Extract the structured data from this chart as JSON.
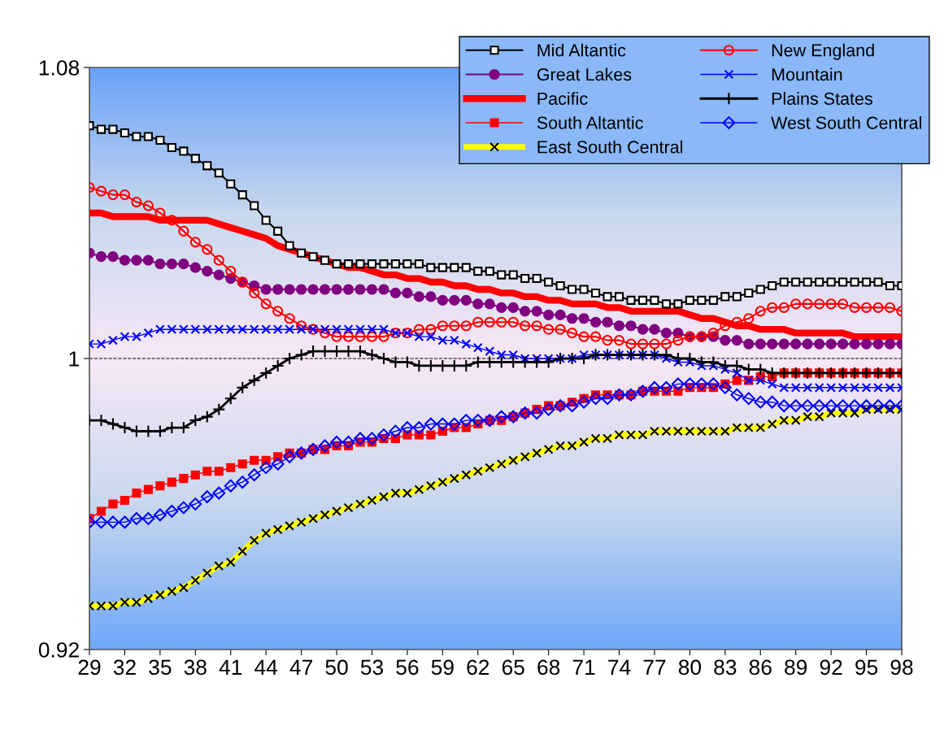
{
  "chart_data": {
    "type": "line",
    "x": [
      29,
      30,
      31,
      32,
      33,
      34,
      35,
      36,
      37,
      38,
      39,
      40,
      41,
      42,
      43,
      44,
      45,
      46,
      47,
      48,
      49,
      50,
      51,
      52,
      53,
      54,
      55,
      56,
      57,
      58,
      59,
      60,
      61,
      62,
      63,
      64,
      65,
      66,
      67,
      68,
      69,
      70,
      71,
      72,
      73,
      74,
      75,
      76,
      77,
      78,
      79,
      80,
      81,
      82,
      83,
      84,
      85,
      86,
      87,
      88,
      89,
      90,
      91,
      92,
      93,
      94,
      95,
      96,
      97,
      98
    ],
    "xlim": [
      29,
      98
    ],
    "xticks": [
      29,
      32,
      35,
      38,
      41,
      44,
      47,
      50,
      53,
      56,
      59,
      62,
      65,
      68,
      71,
      74,
      77,
      80,
      83,
      86,
      89,
      92,
      95,
      98
    ],
    "ylim": [
      0.92,
      1.08
    ],
    "yticks": [
      0.92,
      1,
      1.08
    ],
    "ref_lines": [
      {
        "axis": "y",
        "value": 1,
        "color": "#000000",
        "line_style": "dashed"
      }
    ],
    "legend": "top right",
    "grid": false,
    "series": [
      {
        "name": "Mid Altantic",
        "color": "#000000",
        "marker": "square",
        "values": [
          1.064,
          1.063,
          1.063,
          1.062,
          1.061,
          1.061,
          1.06,
          1.058,
          1.057,
          1.055,
          1.053,
          1.051,
          1.048,
          1.045,
          1.042,
          1.038,
          1.035,
          1.031,
          1.029,
          1.028,
          1.027,
          1.026,
          1.026,
          1.026,
          1.026,
          1.026,
          1.026,
          1.026,
          1.026,
          1.025,
          1.025,
          1.025,
          1.025,
          1.024,
          1.024,
          1.023,
          1.023,
          1.022,
          1.022,
          1.021,
          1.02,
          1.019,
          1.019,
          1.018,
          1.017,
          1.017,
          1.016,
          1.016,
          1.016,
          1.015,
          1.015,
          1.016,
          1.016,
          1.016,
          1.017,
          1.017,
          1.018,
          1.019,
          1.02,
          1.021,
          1.021,
          1.021,
          1.021,
          1.021,
          1.021,
          1.021,
          1.021,
          1.021,
          1.02,
          1.02
        ]
      },
      {
        "name": "New England",
        "color": "#ff0000",
        "marker": "circle",
        "values": [
          1.047,
          1.046,
          1.045,
          1.045,
          1.043,
          1.042,
          1.04,
          1.038,
          1.035,
          1.032,
          1.03,
          1.027,
          1.024,
          1.021,
          1.018,
          1.015,
          1.013,
          1.011,
          1.009,
          1.008,
          1.007,
          1.006,
          1.006,
          1.006,
          1.006,
          1.006,
          1.007,
          1.007,
          1.008,
          1.008,
          1.009,
          1.009,
          1.009,
          1.01,
          1.01,
          1.01,
          1.01,
          1.009,
          1.009,
          1.008,
          1.008,
          1.007,
          1.006,
          1.006,
          1.005,
          1.005,
          1.004,
          1.004,
          1.004,
          1.004,
          1.005,
          1.006,
          1.006,
          1.007,
          1.009,
          1.01,
          1.011,
          1.013,
          1.014,
          1.014,
          1.015,
          1.015,
          1.015,
          1.015,
          1.015,
          1.014,
          1.014,
          1.014,
          1.014,
          1.013
        ]
      },
      {
        "name": "Great Lakes",
        "color": "#800080",
        "marker": "circle",
        "values": [
          1.029,
          1.028,
          1.028,
          1.027,
          1.027,
          1.027,
          1.026,
          1.026,
          1.026,
          1.025,
          1.024,
          1.023,
          1.022,
          1.021,
          1.02,
          1.019,
          1.019,
          1.019,
          1.019,
          1.019,
          1.019,
          1.019,
          1.019,
          1.019,
          1.019,
          1.019,
          1.018,
          1.018,
          1.017,
          1.017,
          1.016,
          1.016,
          1.016,
          1.015,
          1.015,
          1.014,
          1.014,
          1.013,
          1.013,
          1.012,
          1.012,
          1.011,
          1.011,
          1.01,
          1.01,
          1.009,
          1.009,
          1.008,
          1.008,
          1.007,
          1.007,
          1.006,
          1.006,
          1.006,
          1.005,
          1.005,
          1.004,
          1.004,
          1.004,
          1.004,
          1.004,
          1.004,
          1.004,
          1.004,
          1.004,
          1.004,
          1.004,
          1.004,
          1.004,
          1.004
        ]
      },
      {
        "name": "Mountain",
        "color": "#0000ff",
        "marker": "x",
        "values": [
          1.004,
          1.004,
          1.005,
          1.006,
          1.006,
          1.007,
          1.008,
          1.008,
          1.008,
          1.008,
          1.008,
          1.008,
          1.008,
          1.008,
          1.008,
          1.008,
          1.008,
          1.008,
          1.008,
          1.008,
          1.008,
          1.008,
          1.008,
          1.008,
          1.008,
          1.008,
          1.007,
          1.007,
          1.006,
          1.006,
          1.005,
          1.005,
          1.004,
          1.003,
          1.002,
          1.001,
          1.001,
          1.0,
          1.0,
          1.0,
          1.0,
          1.0,
          1.001,
          1.001,
          1.001,
          1.001,
          1.001,
          1.001,
          1.001,
          1.0,
          0.999,
          0.999,
          0.998,
          0.998,
          0.997,
          0.996,
          0.994,
          0.994,
          0.993,
          0.992,
          0.992,
          0.992,
          0.992,
          0.992,
          0.992,
          0.992,
          0.992,
          0.992,
          0.992,
          0.992
        ]
      },
      {
        "name": "Pacific",
        "color": "#ff0000",
        "marker": "none",
        "values": [
          1.04,
          1.04,
          1.039,
          1.039,
          1.039,
          1.039,
          1.038,
          1.038,
          1.038,
          1.038,
          1.038,
          1.037,
          1.036,
          1.035,
          1.034,
          1.033,
          1.031,
          1.03,
          1.029,
          1.028,
          1.027,
          1.026,
          1.025,
          1.025,
          1.024,
          1.023,
          1.023,
          1.022,
          1.022,
          1.021,
          1.021,
          1.02,
          1.02,
          1.019,
          1.019,
          1.018,
          1.018,
          1.017,
          1.017,
          1.016,
          1.016,
          1.015,
          1.015,
          1.015,
          1.014,
          1.014,
          1.013,
          1.013,
          1.013,
          1.013,
          1.013,
          1.012,
          1.011,
          1.011,
          1.01,
          1.009,
          1.009,
          1.008,
          1.008,
          1.008,
          1.007,
          1.007,
          1.007,
          1.007,
          1.007,
          1.006,
          1.006,
          1.006,
          1.006,
          1.006
        ]
      },
      {
        "name": "Plains States",
        "color": "#000000",
        "marker": "cross",
        "values": [
          0.983,
          0.983,
          0.982,
          0.981,
          0.98,
          0.98,
          0.98,
          0.981,
          0.981,
          0.983,
          0.984,
          0.986,
          0.989,
          0.992,
          0.994,
          0.996,
          0.998,
          1.0,
          1.001,
          1.002,
          1.002,
          1.002,
          1.002,
          1.002,
          1.001,
          1.0,
          0.999,
          0.999,
          0.998,
          0.998,
          0.998,
          0.998,
          0.998,
          0.999,
          0.999,
          0.999,
          0.999,
          0.999,
          0.999,
          0.999,
          1.0,
          1.0,
          1.0,
          1.001,
          1.001,
          1.001,
          1.001,
          1.001,
          1.001,
          1.001,
          1.0,
          1.0,
          0.999,
          0.999,
          0.998,
          0.998,
          0.997,
          0.997,
          0.996,
          0.996,
          0.996,
          0.996,
          0.996,
          0.996,
          0.996,
          0.996,
          0.996,
          0.996,
          0.996,
          0.996
        ]
      },
      {
        "name": "South Altantic",
        "color": "#ff0000",
        "marker": "square",
        "values": [
          0.956,
          0.958,
          0.96,
          0.961,
          0.963,
          0.964,
          0.965,
          0.966,
          0.967,
          0.968,
          0.969,
          0.969,
          0.97,
          0.971,
          0.972,
          0.972,
          0.973,
          0.974,
          0.974,
          0.975,
          0.975,
          0.976,
          0.976,
          0.977,
          0.977,
          0.978,
          0.978,
          0.979,
          0.979,
          0.979,
          0.98,
          0.981,
          0.981,
          0.982,
          0.983,
          0.983,
          0.984,
          0.985,
          0.986,
          0.987,
          0.987,
          0.988,
          0.989,
          0.99,
          0.99,
          0.99,
          0.99,
          0.991,
          0.991,
          0.991,
          0.991,
          0.992,
          0.992,
          0.992,
          0.993,
          0.994,
          0.994,
          0.995,
          0.995,
          0.996,
          0.996,
          0.996,
          0.996,
          0.996,
          0.996,
          0.996,
          0.996,
          0.996,
          0.996,
          0.996
        ]
      },
      {
        "name": "West South Central",
        "color": "#0000ff",
        "marker": "diamond",
        "values": [
          0.955,
          0.955,
          0.955,
          0.955,
          0.956,
          0.956,
          0.957,
          0.958,
          0.959,
          0.96,
          0.962,
          0.963,
          0.965,
          0.966,
          0.968,
          0.97,
          0.971,
          0.973,
          0.974,
          0.975,
          0.976,
          0.977,
          0.977,
          0.978,
          0.978,
          0.979,
          0.98,
          0.981,
          0.981,
          0.982,
          0.982,
          0.982,
          0.983,
          0.983,
          0.983,
          0.984,
          0.984,
          0.985,
          0.985,
          0.986,
          0.987,
          0.987,
          0.988,
          0.989,
          0.989,
          0.99,
          0.99,
          0.991,
          0.992,
          0.992,
          0.993,
          0.993,
          0.993,
          0.993,
          0.992,
          0.99,
          0.989,
          0.988,
          0.988,
          0.987,
          0.987,
          0.987,
          0.987,
          0.987,
          0.987,
          0.987,
          0.987,
          0.987,
          0.987,
          0.987
        ]
      },
      {
        "name": "East South Central",
        "color": "#ffff00",
        "marker": "x",
        "values": [
          0.932,
          0.932,
          0.932,
          0.933,
          0.933,
          0.934,
          0.935,
          0.936,
          0.937,
          0.939,
          0.941,
          0.943,
          0.944,
          0.947,
          0.95,
          0.952,
          0.953,
          0.954,
          0.955,
          0.956,
          0.957,
          0.958,
          0.959,
          0.96,
          0.961,
          0.962,
          0.963,
          0.963,
          0.964,
          0.965,
          0.966,
          0.967,
          0.968,
          0.969,
          0.97,
          0.971,
          0.972,
          0.973,
          0.974,
          0.975,
          0.976,
          0.976,
          0.977,
          0.978,
          0.978,
          0.979,
          0.979,
          0.979,
          0.98,
          0.98,
          0.98,
          0.98,
          0.98,
          0.98,
          0.98,
          0.981,
          0.981,
          0.981,
          0.982,
          0.983,
          0.983,
          0.984,
          0.984,
          0.985,
          0.985,
          0.985,
          0.986,
          0.986,
          0.986,
          0.986
        ]
      }
    ]
  }
}
